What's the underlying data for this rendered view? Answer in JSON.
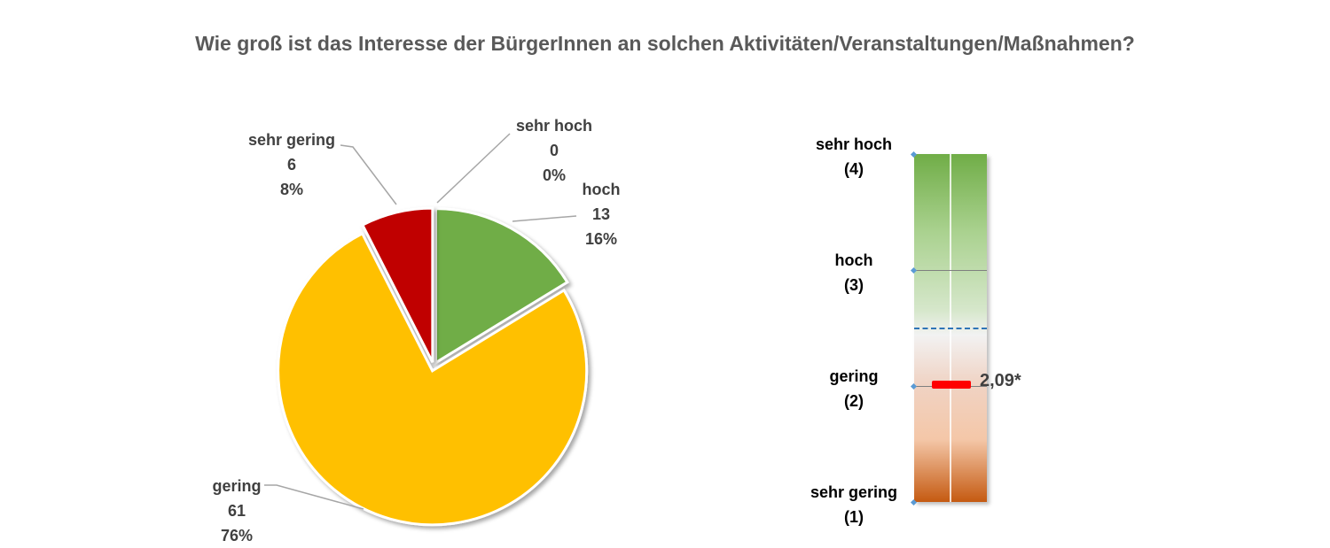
{
  "chart_data": [
    {
      "type": "pie",
      "title": "Wie groß ist das Interesse der BürgerInnen an solchen Aktivitäten/Veranstaltungen/Maßnahmen?",
      "slices": [
        {
          "name": "sehr hoch",
          "count": "0",
          "percent": "0%",
          "value": 0,
          "color": "#5b9bd5"
        },
        {
          "name": "hoch",
          "count": "13",
          "percent": "16%",
          "value": 13,
          "color": "#70ad47"
        },
        {
          "name": "gering",
          "count": "61",
          "percent": "76%",
          "value": 61,
          "color": "#ffc000"
        },
        {
          "name": "sehr gering",
          "count": "6",
          "percent": "8%",
          "value": 6,
          "color": "#c00000"
        }
      ],
      "exploded": true,
      "start": "12 o'clock, clockwise"
    },
    {
      "type": "scale",
      "levels": [
        {
          "name": "sehr hoch",
          "code": "(4)",
          "value": 4
        },
        {
          "name": "hoch",
          "code": "(3)",
          "value": 3
        },
        {
          "name": "gering",
          "code": "(2)",
          "value": 2
        },
        {
          "name": "sehr gering",
          "code": "(1)",
          "value": 1
        }
      ],
      "ylim": [
        1,
        4
      ],
      "mean": 2.09,
      "mean_label": "2,09*",
      "reference_line": 2.5,
      "mean_color": "#ff0000",
      "reference_color": "#2e75b6"
    }
  ]
}
